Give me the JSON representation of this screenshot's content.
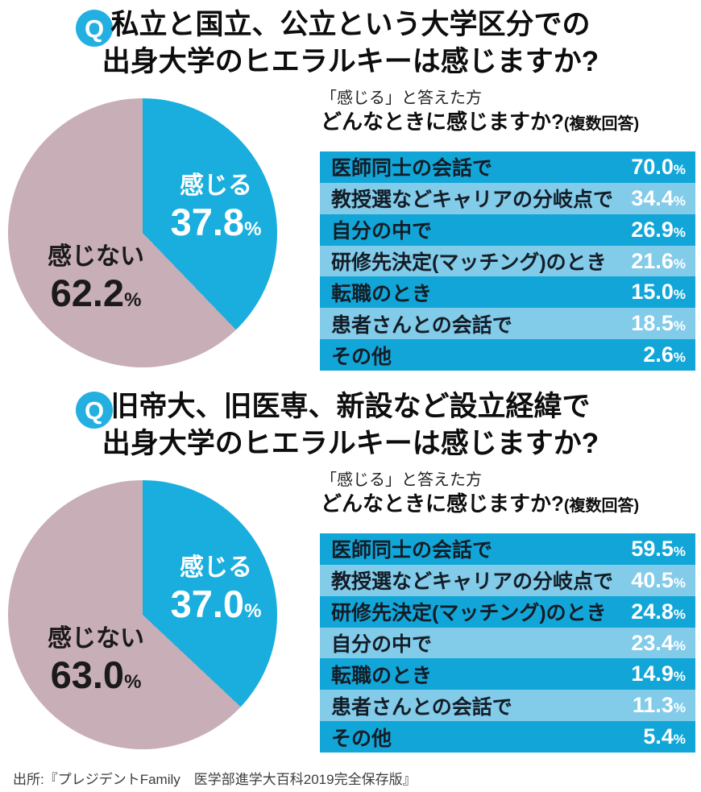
{
  "colors": {
    "pie_feel": "#19aede",
    "pie_notfeel": "#c8aeb6",
    "row_dark": "#12a6d8",
    "row_light": "#82cbe9",
    "badge": "#23b0e1",
    "value_text": "#ffffff",
    "label_text": "#141d27"
  },
  "footer": {
    "source": "出所:『プレジデントFamily　医学部進学大百科2019完全保存版』"
  },
  "sections": [
    {
      "badge": "Q",
      "title_line1": "私立と国立、公立という大学区分での",
      "title_line2": "出身大学のヒエラルキーは感じますか?",
      "caption_intro": "「感じる」と答えた方",
      "caption_question": "どんなときに感じますか?",
      "caption_note": "(複数回答)",
      "pie": {
        "feel_label": "感じる",
        "feel_value": "37.8",
        "notfeel_label": "感じない",
        "notfeel_value": "62.2",
        "percent": "%"
      },
      "rows": [
        {
          "label": "医師同士の会話で",
          "value": "70.0"
        },
        {
          "label": "教授選などキャリアの分岐点で",
          "value": "34.4"
        },
        {
          "label": "自分の中で",
          "value": "26.9"
        },
        {
          "label": "研修先決定(マッチング)のとき",
          "value": "21.6"
        },
        {
          "label": "転職のとき",
          "value": "15.0"
        },
        {
          "label": "患者さんとの会話で",
          "value": "18.5"
        },
        {
          "label": "その他",
          "value": "2.6"
        }
      ]
    },
    {
      "badge": "Q",
      "title_line1": "旧帝大、旧医専、新設など設立経緯で",
      "title_line2": "出身大学のヒエラルキーは感じますか?",
      "caption_intro": "「感じる」と答えた方",
      "caption_question": "どんなときに感じますか?",
      "caption_note": "(複数回答)",
      "pie": {
        "feel_label": "感じる",
        "feel_value": "37.0",
        "notfeel_label": "感じない",
        "notfeel_value": "63.0",
        "percent": "%"
      },
      "rows": [
        {
          "label": "医師同士の会話で",
          "value": "59.5"
        },
        {
          "label": "教授選などキャリアの分岐点で",
          "value": "40.5"
        },
        {
          "label": "研修先決定(マッチング)のとき",
          "value": "24.8"
        },
        {
          "label": "自分の中で",
          "value": "23.4"
        },
        {
          "label": "転職のとき",
          "value": "14.9"
        },
        {
          "label": "患者さんとの会話で",
          "value": "11.3"
        },
        {
          "label": "その他",
          "value": "5.4"
        }
      ]
    }
  ],
  "chart_data": [
    {
      "type": "pie",
      "title": "私立と国立、公立という大学区分での出身大学のヒエラルキーは感じますか?",
      "labels": [
        "感じる",
        "感じない"
      ],
      "values": [
        37.8,
        62.2
      ],
      "colors": [
        "#19aede",
        "#c8aeb6"
      ],
      "unit": "%",
      "start_angle_deg": 0,
      "direction": "clockwise"
    },
    {
      "type": "table",
      "title": "「感じる」と答えた方 どんなときに感じますか?(複数回答)",
      "categories": [
        "医師同士の会話で",
        "教授選などキャリアの分岐点で",
        "自分の中で",
        "研修先決定(マッチング)のとき",
        "転職のとき",
        "患者さんとの会話で",
        "その他"
      ],
      "values": [
        70.0,
        34.4,
        26.9,
        21.6,
        15.0,
        18.5,
        2.6
      ],
      "unit": "%"
    },
    {
      "type": "pie",
      "title": "旧帝大、旧医専、新設など設立経緯で出身大学のヒエラルキーは感じますか?",
      "labels": [
        "感じる",
        "感じない"
      ],
      "values": [
        37.0,
        63.0
      ],
      "colors": [
        "#19aede",
        "#c8aeb6"
      ],
      "unit": "%",
      "start_angle_deg": 0,
      "direction": "clockwise"
    },
    {
      "type": "table",
      "title": "「感じる」と答えた方 どんなときに感じますか?(複数回答)",
      "categories": [
        "医師同士の会話で",
        "教授選などキャリアの分岐点で",
        "研修先決定(マッチング)のとき",
        "自分の中で",
        "転職のとき",
        "患者さんとの会話で",
        "その他"
      ],
      "values": [
        59.5,
        40.5,
        24.8,
        23.4,
        14.9,
        11.3,
        5.4
      ],
      "unit": "%"
    }
  ]
}
